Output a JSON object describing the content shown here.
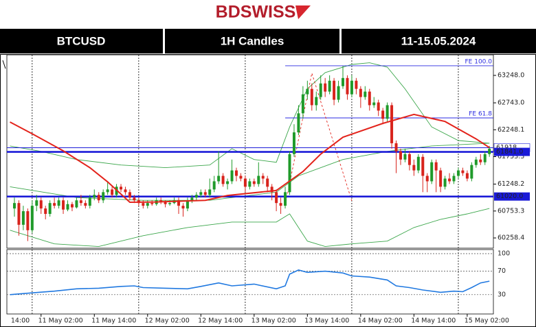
{
  "header": {
    "logo": "BDSWISS",
    "symbol": "BTCUSD",
    "timeframe": "1H Candles",
    "dates": "11-15.05.2024"
  },
  "chart_data": {
    "type": "candlestick",
    "up_color": "#1f9a2a",
    "down_color": "#d8231c",
    "xlim": [
      -5.7,
      103.9
    ],
    "xticks": [
      {
        "value": -10,
        "label": "14:00"
      },
      {
        "value": 2,
        "label": "11 May 02:00"
      },
      {
        "value": 14,
        "label": "11 May 14:00"
      },
      {
        "value": 26,
        "label": "12 May 02:00"
      },
      {
        "value": 38,
        "label": "12 May 14:00"
      },
      {
        "value": 50,
        "label": "13 May 02:00"
      },
      {
        "value": 62,
        "label": "13 May 14:00"
      },
      {
        "value": 74,
        "label": "14 May 02:00"
      },
      {
        "value": 86,
        "label": "14 May 14:00"
      },
      {
        "value": 98,
        "label": "15 May 02:00"
      }
    ],
    "day_separators": [
      0,
      24,
      48,
      72,
      96
    ],
    "ylim": [
      60070,
      63626
    ],
    "yticks": [
      {
        "value": 63248,
        "label": "63248.0"
      },
      {
        "value": 62743,
        "label": "62743.0"
      },
      {
        "value": 62248.1,
        "label": "62248.1"
      },
      {
        "value": 61753.3,
        "label": "61753.3"
      },
      {
        "value": 61248.2,
        "label": "61248.2"
      },
      {
        "value": 60753.3,
        "label": "60753.3"
      },
      {
        "value": 60258.4,
        "label": "60258.4"
      }
    ],
    "x": [
      -4,
      -3,
      -2,
      -1,
      0,
      1,
      2,
      3,
      4,
      5,
      6,
      7,
      8,
      9,
      10,
      11,
      12,
      13,
      14,
      15,
      16,
      17,
      18,
      19,
      20,
      21,
      22,
      23,
      24,
      25,
      26,
      27,
      28,
      29,
      30,
      31,
      32,
      33,
      34,
      35,
      36,
      37,
      38,
      39,
      40,
      41,
      42,
      43,
      44,
      45,
      46,
      47,
      48,
      49,
      50,
      51,
      52,
      53,
      54,
      55,
      56,
      57,
      58,
      59,
      60,
      61,
      62,
      63,
      64,
      65,
      66,
      67,
      68,
      69,
      70,
      71,
      72,
      73,
      74,
      75,
      76,
      77,
      78,
      79,
      80,
      81,
      82,
      83,
      84,
      85,
      86,
      87,
      88,
      89,
      90,
      91,
      92,
      93,
      94,
      95,
      96,
      97,
      98,
      99,
      100,
      101,
      102,
      103
    ],
    "candles": [
      [
        60800,
        61000,
        60650,
        60900
      ],
      [
        60900,
        60950,
        60300,
        60500
      ],
      [
        60500,
        60850,
        60400,
        60750
      ],
      [
        60750,
        60800,
        60200,
        60400
      ],
      [
        60400,
        60950,
        60350,
        60850
      ],
      [
        60850,
        61050,
        60750,
        60950
      ],
      [
        60950,
        61000,
        60700,
        60800
      ],
      [
        60800,
        60850,
        60600,
        60700
      ],
      [
        60700,
        60950,
        60650,
        60900
      ],
      [
        60900,
        61000,
        60800,
        60850
      ],
      [
        60850,
        61000,
        60800,
        60950
      ],
      [
        60950,
        61000,
        60700,
        60780
      ],
      [
        60780,
        60950,
        60750,
        60880
      ],
      [
        60880,
        60920,
        60750,
        60820
      ],
      [
        60820,
        61000,
        60800,
        60950
      ],
      [
        60950,
        61050,
        60850,
        60900
      ],
      [
        60900,
        60950,
        60800,
        60850
      ],
      [
        60850,
        61050,
        60800,
        61000
      ],
      [
        61000,
        61150,
        60950,
        61050
      ],
      [
        61050,
        61100,
        60900,
        60950
      ],
      [
        60950,
        61150,
        60900,
        61100
      ],
      [
        61100,
        61300,
        61050,
        61150
      ],
      [
        61150,
        61200,
        61000,
        61050
      ],
      [
        61050,
        61250,
        61000,
        61200
      ],
      [
        61200,
        61250,
        61100,
        61150
      ],
      [
        61150,
        61200,
        61050,
        61100
      ],
      [
        61100,
        61150,
        60950,
        61000
      ],
      [
        61000,
        61050,
        60900,
        60950
      ],
      [
        60950,
        61000,
        60850,
        60900
      ],
      [
        60900,
        60950,
        60800,
        60850
      ],
      [
        60850,
        60950,
        60800,
        60900
      ],
      [
        60900,
        60950,
        60850,
        60880
      ],
      [
        60880,
        61000,
        60850,
        60950
      ],
      [
        60950,
        61000,
        60880,
        60920
      ],
      [
        60920,
        60950,
        60820,
        60880
      ],
      [
        60880,
        60950,
        60850,
        60900
      ],
      [
        60900,
        61000,
        60880,
        60950
      ],
      [
        60950,
        61000,
        60700,
        60850
      ],
      [
        60850,
        60900,
        60650,
        60800
      ],
      [
        60800,
        61000,
        60750,
        60950
      ],
      [
        60950,
        61050,
        60900,
        61000
      ],
      [
        61000,
        61100,
        60950,
        61050
      ],
      [
        61050,
        61150,
        61000,
        61100
      ],
      [
        61100,
        61150,
        61000,
        61050
      ],
      [
        61050,
        61350,
        61000,
        61150
      ],
      [
        61150,
        61400,
        61100,
        61300
      ],
      [
        61300,
        61850,
        61250,
        61400
      ],
      [
        61400,
        61450,
        61200,
        61250
      ],
      [
        61250,
        61350,
        61150,
        61300
      ],
      [
        61300,
        61700,
        61250,
        61500
      ],
      [
        61500,
        61550,
        61300,
        61400
      ],
      [
        61400,
        61450,
        61300,
        61350
      ],
      [
        61350,
        61400,
        61100,
        61200
      ],
      [
        61200,
        61350,
        61150,
        61300
      ],
      [
        61300,
        61350,
        61200,
        61250
      ],
      [
        61250,
        61650,
        61200,
        61400
      ],
      [
        61400,
        61450,
        61250,
        61350
      ],
      [
        61350,
        61400,
        61100,
        61200
      ],
      [
        61200,
        61250,
        60950,
        61100
      ],
      [
        61100,
        61150,
        60750,
        60900
      ],
      [
        60900,
        61000,
        60700,
        60850
      ],
      [
        60850,
        61200,
        60800,
        61100
      ],
      [
        61100,
        61850,
        61050,
        61800
      ],
      [
        61800,
        62350,
        61750,
        62200
      ],
      [
        62200,
        62700,
        62150,
        62550
      ],
      [
        62550,
        63050,
        62450,
        62900
      ],
      [
        62900,
        63150,
        62800,
        63000
      ],
      [
        63000,
        63100,
        62600,
        62700
      ],
      [
        62700,
        62950,
        62600,
        62850
      ],
      [
        62850,
        63250,
        62800,
        63100
      ],
      [
        63100,
        63200,
        62850,
        62950
      ],
      [
        62950,
        63250,
        62900,
        63150
      ],
      [
        63150,
        63200,
        62700,
        62800
      ],
      [
        62800,
        63150,
        62750,
        63050
      ],
      [
        63050,
        63420,
        63000,
        63200
      ],
      [
        63200,
        63250,
        62800,
        62900
      ],
      [
        62900,
        63250,
        62850,
        63150
      ],
      [
        63150,
        63200,
        62900,
        63000
      ],
      [
        63000,
        63050,
        62650,
        62850
      ],
      [
        62850,
        63050,
        62800,
        62950
      ],
      [
        62950,
        63000,
        62600,
        62700
      ],
      [
        62700,
        62850,
        62650,
        62750
      ],
      [
        62750,
        62800,
        62500,
        62600
      ],
      [
        62600,
        62650,
        62350,
        62450
      ],
      [
        62450,
        62750,
        62400,
        62700
      ],
      [
        62700,
        62750,
        61900,
        62000
      ],
      [
        62000,
        62050,
        61450,
        61850
      ],
      [
        61850,
        61900,
        61600,
        61700
      ],
      [
        61700,
        61900,
        61650,
        61800
      ],
      [
        61800,
        61850,
        61500,
        61600
      ],
      [
        61600,
        61700,
        61400,
        61500
      ],
      [
        61500,
        61800,
        61450,
        61750
      ],
      [
        61750,
        61800,
        61100,
        61400
      ],
      [
        61400,
        61450,
        61100,
        61300
      ],
      [
        61300,
        61700,
        61250,
        61650
      ],
      [
        61650,
        61700,
        61100,
        61500
      ],
      [
        61500,
        61550,
        61100,
        61200
      ],
      [
        61200,
        61400,
        61150,
        61350
      ],
      [
        61350,
        61450,
        61250,
        61300
      ],
      [
        61300,
        61450,
        61250,
        61400
      ],
      [
        61400,
        61550,
        61350,
        61500
      ],
      [
        61500,
        61550,
        61400,
        61450
      ],
      [
        61450,
        61500,
        61300,
        61350
      ],
      [
        61350,
        61650,
        61300,
        61600
      ],
      [
        61600,
        61750,
        61550,
        61700
      ],
      [
        61700,
        61800,
        61600,
        61650
      ],
      [
        61650,
        61850,
        61600,
        61800
      ],
      [
        61800,
        61950,
        61750,
        61900
      ]
    ],
    "moving_average": {
      "color": "#e3231b",
      "x": [
        -5,
        0,
        7,
        13,
        17,
        22,
        28,
        39,
        44,
        55,
        61,
        65,
        70,
        79,
        86,
        93,
        100,
        103
      ],
      "values": [
        62390,
        62175,
        61860,
        61550,
        61290,
        60915,
        60920,
        60950,
        61040,
        61130,
        61480,
        61800,
        62110,
        62365,
        62530,
        62400,
        62080,
        61920
      ]
    },
    "bands": {
      "color": "#3aa64a",
      "lines": [
        {
          "x": [
            -5,
            2,
            10,
            20,
            30,
            40,
            45,
            50,
            55,
            58,
            62,
            66,
            72,
            76,
            80,
            84,
            90,
            96,
            103
          ],
          "values": [
            61950,
            61850,
            61700,
            61600,
            61550,
            61600,
            61900,
            61700,
            61650,
            62300,
            63000,
            63300,
            63450,
            63480,
            63400,
            63000,
            62300,
            62050,
            62000
          ]
        },
        {
          "x": [
            -5,
            10,
            25,
            40,
            55,
            60,
            70,
            80,
            90,
            103
          ],
          "values": [
            61200,
            61000,
            60950,
            60950,
            61100,
            61400,
            61700,
            61850,
            61950,
            62000
          ]
        },
        {
          "x": [
            -5,
            5,
            15,
            25,
            35,
            45,
            55,
            58,
            62,
            66,
            72,
            80,
            86,
            92,
            98,
            103
          ],
          "values": [
            60400,
            60150,
            60100,
            60300,
            60450,
            60550,
            60550,
            60700,
            60200,
            60100,
            60150,
            60200,
            60450,
            60600,
            60700,
            60800
          ]
        }
      ]
    },
    "levels": [
      {
        "value": 61918,
        "label": "61918",
        "color": "#1a1ad8",
        "thick": false
      },
      {
        "value": 61841,
        "label": "61841.0",
        "color": "#1a1ad8",
        "thick": true
      },
      {
        "value": 61020,
        "label": "61020.0",
        "color": "#1a1ad8",
        "thick": true
      }
    ],
    "fibonacci": {
      "color": "#2a2ae0",
      "levels": [
        {
          "value": 63425,
          "label": "FE 100.0"
        },
        {
          "value": 62466,
          "label": "FE 61.8"
        }
      ],
      "swing": {
        "color": "#e3231b",
        "x": [
          57,
          63,
          72
        ],
        "values": [
          60850,
          63290,
          60940
        ]
      }
    },
    "rsi": {
      "type": "line",
      "color": "#1f78e0",
      "ylim": [
        -3,
        107
      ],
      "yticks": [
        30,
        70,
        100
      ],
      "x": [
        -5,
        0,
        5,
        10,
        15,
        20,
        23,
        25,
        30,
        35,
        38,
        42,
        45,
        50,
        55,
        57,
        58,
        60,
        62,
        66,
        70,
        72,
        76,
        80,
        82,
        85,
        88,
        92,
        95,
        97,
        99,
        101,
        103
      ],
      "values": [
        30,
        33,
        36,
        40,
        41,
        44,
        45,
        42,
        41,
        40,
        44,
        50,
        45,
        48,
        40,
        45,
        65,
        72,
        68,
        70,
        67,
        62,
        60,
        55,
        45,
        42,
        38,
        34,
        36,
        35,
        42,
        50,
        53
      ]
    }
  }
}
